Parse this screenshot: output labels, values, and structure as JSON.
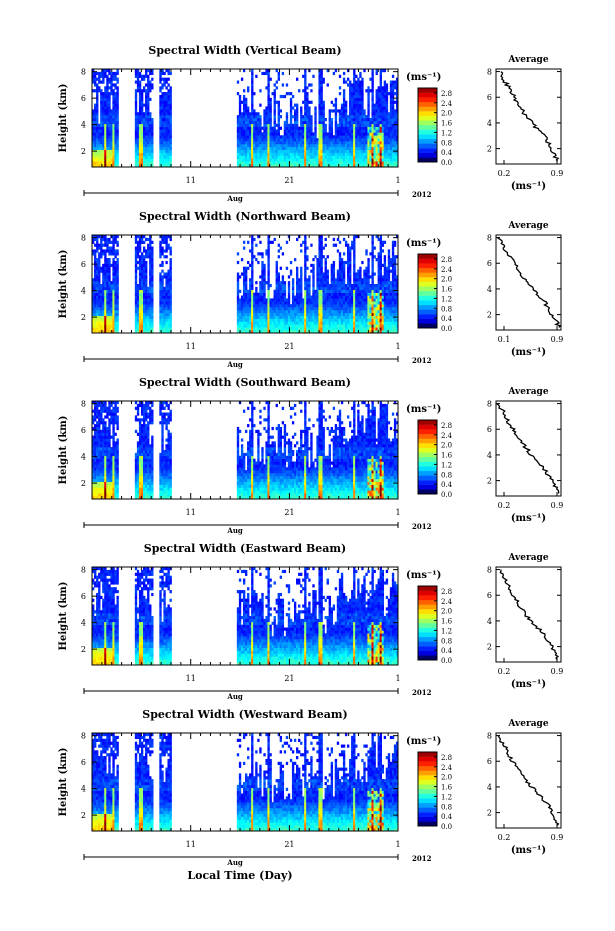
{
  "figure": {
    "xlabel": "Local Time (Day)",
    "month_label": "Aug",
    "year_label": "2012",
    "ylabel": "Height (km)",
    "unit_label": "(ms⁻¹)",
    "avg_title": "Average",
    "avg_xlabel": "(ms⁻¹)"
  },
  "chart_data": [
    {
      "type": "heatmap",
      "title": "Spectral Width (Vertical Beam)",
      "xlabel": "Local Time (Day)",
      "ylabel": "Height (km)",
      "x_ticks": [
        "11",
        "21",
        "1"
      ],
      "x_range_days": [
        1,
        32
      ],
      "y_ticks": [
        "2",
        "4",
        "6",
        "8"
      ],
      "ylim_km": [
        0.8,
        8.2
      ],
      "data_gaps_days": [
        [
          3.6,
          5.4
        ],
        [
          7.1,
          7.8
        ],
        [
          9.0,
          15.6
        ]
      ],
      "colorbar": {
        "label": "(ms⁻¹)",
        "ticks": [
          "0.0",
          "0.4",
          "0.8",
          "1.2",
          "1.6",
          "2.0",
          "2.4",
          "2.8"
        ],
        "range": [
          0.0,
          3.0
        ]
      },
      "average_profile": {
        "title": "Average",
        "xlabel": "(ms⁻¹)",
        "x_ticks": [
          "0.2",
          "0.9"
        ],
        "y_ticks": [
          "2",
          "4",
          "6",
          "8"
        ],
        "xlim": [
          0.15,
          0.9
        ],
        "height_km": [
          1.0,
          1.5,
          2.0,
          2.5,
          3.0,
          3.5,
          4.0,
          4.5,
          5.0,
          5.5,
          6.0,
          6.5,
          7.0,
          7.5,
          8.0
        ],
        "value": [
          0.88,
          0.82,
          0.78,
          0.75,
          0.72,
          0.63,
          0.57,
          0.5,
          0.45,
          0.4,
          0.36,
          0.32,
          0.27,
          0.23,
          0.2
        ]
      }
    },
    {
      "type": "heatmap",
      "title": "Spectral Width (Northward Beam)",
      "xlabel": "Local Time (Day)",
      "ylabel": "Height (km)",
      "x_ticks": [
        "11",
        "21",
        "1"
      ],
      "x_range_days": [
        1,
        32
      ],
      "y_ticks": [
        "2",
        "4",
        "6",
        "8"
      ],
      "ylim_km": [
        0.8,
        8.2
      ],
      "data_gaps_days": [
        [
          3.6,
          5.4
        ],
        [
          7.1,
          7.8
        ],
        [
          9.0,
          15.6
        ]
      ],
      "colorbar": {
        "label": "(ms⁻¹)",
        "ticks": [
          "0.0",
          "0.4",
          "0.8",
          "1.2",
          "1.6",
          "2.0",
          "2.4",
          "2.8"
        ],
        "range": [
          0.0,
          3.0
        ]
      },
      "average_profile": {
        "title": "Average",
        "xlabel": "(ms⁻¹)",
        "x_ticks": [
          "0.1",
          "0.9"
        ],
        "y_ticks": [
          "2",
          "4",
          "6",
          "8"
        ],
        "xlim": [
          0.1,
          0.9
        ],
        "height_km": [
          1.0,
          1.5,
          2.0,
          2.5,
          3.0,
          3.5,
          4.0,
          4.5,
          5.0,
          5.5,
          6.0,
          6.5,
          7.0,
          7.5,
          8.0
        ],
        "value": [
          0.88,
          0.84,
          0.78,
          0.74,
          0.7,
          0.62,
          0.55,
          0.48,
          0.42,
          0.37,
          0.32,
          0.27,
          0.22,
          0.18,
          0.14
        ]
      }
    },
    {
      "type": "heatmap",
      "title": "Spectral Width (Southward Beam)",
      "xlabel": "Local Time (Day)",
      "ylabel": "Height (km)",
      "x_ticks": [
        "11",
        "21",
        "1"
      ],
      "x_range_days": [
        1,
        32
      ],
      "y_ticks": [
        "2",
        "4",
        "6",
        "8"
      ],
      "ylim_km": [
        0.8,
        8.2
      ],
      "data_gaps_days": [
        [
          3.6,
          5.4
        ],
        [
          7.1,
          7.8
        ],
        [
          9.0,
          15.6
        ]
      ],
      "colorbar": {
        "label": "(ms⁻¹)",
        "ticks": [
          "0.0",
          "0.4",
          "0.8",
          "1.2",
          "1.6",
          "2.0",
          "2.4",
          "2.8"
        ],
        "range": [
          0.0,
          3.0
        ]
      },
      "average_profile": {
        "title": "Average",
        "xlabel": "(ms⁻¹)",
        "x_ticks": [
          "0.2",
          "0.9"
        ],
        "y_ticks": [
          "2",
          "4",
          "6",
          "8"
        ],
        "xlim": [
          0.15,
          0.9
        ],
        "height_km": [
          1.0,
          1.5,
          2.0,
          2.5,
          3.0,
          3.5,
          4.0,
          4.5,
          5.0,
          5.5,
          6.0,
          6.5,
          7.0,
          7.5,
          8.0
        ],
        "value": [
          0.87,
          0.83,
          0.8,
          0.74,
          0.7,
          0.64,
          0.56,
          0.5,
          0.45,
          0.4,
          0.35,
          0.3,
          0.26,
          0.22,
          0.18
        ]
      }
    },
    {
      "type": "heatmap",
      "title": "Spectral Width (Eastward Beam)",
      "xlabel": "Local Time (Day)",
      "ylabel": "Height (km)",
      "x_ticks": [
        "11",
        "21",
        "1"
      ],
      "x_range_days": [
        1,
        32
      ],
      "y_ticks": [
        "2",
        "4",
        "6",
        "8"
      ],
      "ylim_km": [
        0.8,
        8.2
      ],
      "data_gaps_days": [
        [
          3.6,
          5.4
        ],
        [
          7.1,
          7.8
        ],
        [
          9.0,
          15.6
        ]
      ],
      "colorbar": {
        "label": "(ms⁻¹)",
        "ticks": [
          "0.0",
          "0.4",
          "0.8",
          "1.2",
          "1.6",
          "2.0",
          "2.4",
          "2.8"
        ],
        "range": [
          0.0,
          3.0
        ]
      },
      "average_profile": {
        "title": "Average",
        "xlabel": "(ms⁻¹)",
        "x_ticks": [
          "0.2",
          "0.9"
        ],
        "y_ticks": [
          "2",
          "4",
          "6",
          "8"
        ],
        "xlim": [
          0.15,
          0.9
        ],
        "height_km": [
          1.0,
          1.5,
          2.0,
          2.5,
          3.0,
          3.5,
          4.0,
          4.5,
          5.0,
          5.5,
          6.0,
          6.5,
          7.0,
          7.5,
          8.0
        ],
        "value": [
          0.86,
          0.82,
          0.79,
          0.75,
          0.7,
          0.62,
          0.55,
          0.49,
          0.44,
          0.39,
          0.35,
          0.31,
          0.27,
          0.23,
          0.19
        ]
      }
    },
    {
      "type": "heatmap",
      "title": "Spectral Width (Westward Beam)",
      "xlabel": "Local Time (Day)",
      "ylabel": "Height (km)",
      "x_ticks": [
        "11",
        "21",
        "1"
      ],
      "x_range_days": [
        1,
        32
      ],
      "y_ticks": [
        "2",
        "4",
        "6",
        "8"
      ],
      "ylim_km": [
        0.8,
        8.2
      ],
      "data_gaps_days": [
        [
          3.6,
          5.4
        ],
        [
          7.1,
          7.8
        ],
        [
          9.0,
          15.6
        ]
      ],
      "colorbar": {
        "label": "(ms⁻¹)",
        "ticks": [
          "0.0",
          "0.4",
          "0.8",
          "1.2",
          "1.6",
          "2.0",
          "2.4",
          "2.8"
        ],
        "range": [
          0.0,
          3.0
        ]
      },
      "average_profile": {
        "title": "Average",
        "xlabel": "(ms⁻¹)",
        "x_ticks": [
          "0.2",
          "0.9"
        ],
        "y_ticks": [
          "2",
          "4",
          "6",
          "8"
        ],
        "xlim": [
          0.15,
          0.9
        ],
        "height_km": [
          1.0,
          1.5,
          2.0,
          2.5,
          3.0,
          3.5,
          4.0,
          4.5,
          5.0,
          5.5,
          6.0,
          6.5,
          7.0,
          7.5,
          8.0
        ],
        "value": [
          0.88,
          0.84,
          0.8,
          0.76,
          0.7,
          0.63,
          0.56,
          0.5,
          0.44,
          0.39,
          0.34,
          0.3,
          0.26,
          0.22,
          0.19
        ]
      }
    }
  ]
}
